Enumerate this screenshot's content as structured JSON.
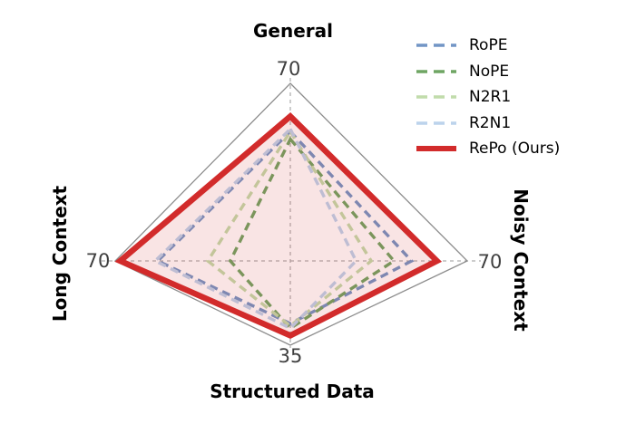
{
  "chart_data": {
    "type": "radar",
    "title": "",
    "grid": "diamond-frame with dashed cross spokes",
    "legend_position": "upper right",
    "grid_color": "#8c8c8c",
    "spoke_color": "#9a9a9a",
    "tick_color": "#3f3f3f",
    "axes": [
      {
        "label": "General",
        "max": 70,
        "tick_label": "70",
        "position": "top"
      },
      {
        "label": "Noisy Context",
        "max": 70,
        "tick_label": "70",
        "position": "right"
      },
      {
        "label": "Structured Data",
        "max": 35,
        "tick_label": "35",
        "position": "bottom"
      },
      {
        "label": "Long Context",
        "max": 70,
        "tick_label": "70",
        "position": "left"
      }
    ],
    "series": [
      {
        "name": "RoPE",
        "color": "#7295c5",
        "style": "dashed",
        "values": [
          51,
          48,
          26,
          53
        ]
      },
      {
        "name": "NoPE",
        "color": "#6fa563",
        "style": "dashed",
        "values": [
          48,
          41,
          28,
          24
        ]
      },
      {
        "name": "N2R1",
        "color": "#c1dcab",
        "style": "dashed",
        "values": [
          51,
          32,
          27,
          33
        ]
      },
      {
        "name": "R2N1",
        "color": "#bcd3ec",
        "style": "dashed",
        "values": [
          52,
          26,
          28,
          54
        ]
      },
      {
        "name": "RePo (Ours)",
        "color": "#d22b2b",
        "style": "solid",
        "values": [
          57,
          58,
          31,
          68
        ],
        "fill": "rgba(210,43,43,0.13)"
      }
    ]
  }
}
